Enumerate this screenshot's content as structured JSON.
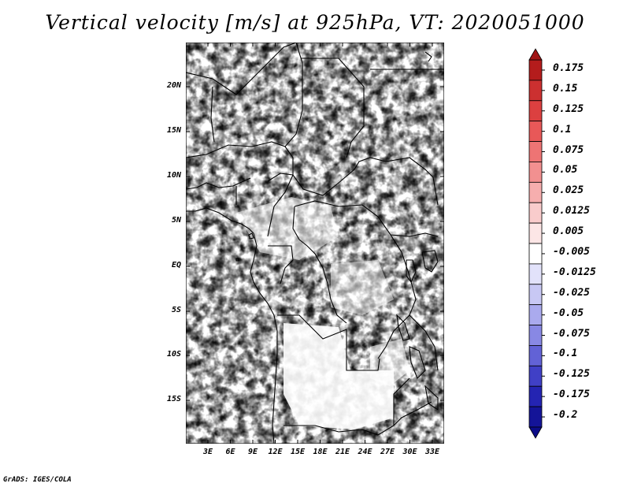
{
  "title": "Vertical velocity [m/s] at 925hPa, VT: 2020051000",
  "credit": "GrADS: IGES/COLA",
  "lat_labels": [
    "20N",
    "15N",
    "10N",
    "5N",
    "EQ",
    "5S",
    "10S",
    "15S"
  ],
  "lon_labels": [
    "3E",
    "6E",
    "9E",
    "12E",
    "15E",
    "18E",
    "21E",
    "24E",
    "27E",
    "30E",
    "33E"
  ],
  "colorbar": {
    "labels": [
      "0.175",
      "0.15",
      "0.125",
      "0.1",
      "0.075",
      "0.05",
      "0.025",
      "0.0125",
      "0.005",
      "-0.005",
      "-0.0125",
      "-0.025",
      "-0.05",
      "-0.075",
      "-0.1",
      "-0.125",
      "-0.175",
      "-0.2"
    ],
    "colors": [
      "#b41c1c",
      "#cc3030",
      "#dc4040",
      "#e85858",
      "#ee7474",
      "#f29090",
      "#f6aeae",
      "#f9cccc",
      "#fce6e6",
      "#ffffff",
      "#e2e2fa",
      "#c8c8f4",
      "#aaaaee",
      "#8888e4",
      "#6262d6",
      "#4040c6",
      "#2424b2",
      "#141498"
    ]
  },
  "map": {
    "variable": "Vertical velocity",
    "units": "m/s",
    "level": "925hPa",
    "valid_time": "2020051000",
    "lon_range": [
      0,
      35
    ],
    "lat_range": [
      -20,
      24
    ]
  }
}
